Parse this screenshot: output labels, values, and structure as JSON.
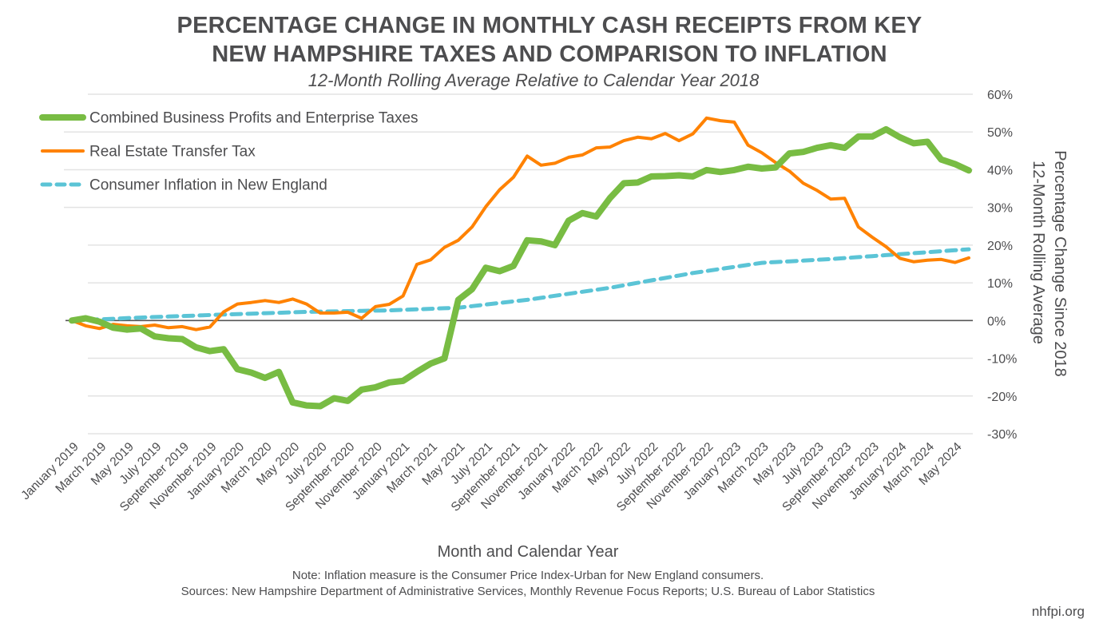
{
  "header": {
    "title_line1": "PERCENTAGE CHANGE IN MONTHLY CASH RECEIPTS FROM KEY",
    "title_line2": "NEW HAMPSHIRE TAXES AND COMPARISON TO INFLATION",
    "subtitle": "12-Month Rolling Average Relative to Calendar Year 2018"
  },
  "footer": {
    "note": "Note: Inflation measure is the Consumer Price Index-Urban for New England consumers.",
    "sources": "Sources: New Hampshire Department of Administrative Services, Monthly Revenue Focus Reports; U.S. Bureau of Labor Statistics",
    "brand": "nhfpi.org"
  },
  "chart_data": {
    "type": "line",
    "title": "PERCENTAGE CHANGE IN MONTHLY CASH RECEIPTS FROM KEY NEW HAMPSHIRE TAXES AND COMPARISON TO INFLATION",
    "subtitle": "12-Month Rolling Average Relative to Calendar Year 2018",
    "xlabel": "Month and Calendar Year",
    "ylabel_line1": "Percentage Change Since 2018",
    "ylabel_line2": "12-Month Rolling Average",
    "y_axis_side": "right",
    "ylim": [
      -30,
      60
    ],
    "yticks": [
      60,
      50,
      40,
      30,
      20,
      10,
      0,
      -10,
      -20,
      -30
    ],
    "ytick_labels": [
      "60%",
      "50%",
      "40%",
      "30%",
      "20%",
      "10%",
      "0%",
      "-10%",
      "-20%",
      "-30%"
    ],
    "grid": true,
    "legend_position": "top-left",
    "x_start": "January 2019",
    "x_end": "May 2024",
    "n_months": 66,
    "xtick_labels": [
      "January 2019",
      "March 2019",
      "May 2019",
      "July 2019",
      "September 2019",
      "November 2019",
      "January 2020",
      "March 2020",
      "May 2020",
      "July 2020",
      "September 2020",
      "November 2020",
      "January 2021",
      "March 2021",
      "May 2021",
      "July 2021",
      "September 2021",
      "November 2021",
      "January 2022",
      "March 2022",
      "May 2022",
      "July 2022",
      "September 2022",
      "November 2022",
      "January 2023",
      "March 2023",
      "May 2023",
      "July 2023",
      "September 2023",
      "November 2023",
      "January 2024",
      "March 2024",
      "May 2024"
    ],
    "series": [
      {
        "name": "Combined Business Profits and Enterprise Taxes",
        "color": "#78BC43",
        "style": "solid-thick",
        "values": [
          0,
          0.6,
          -0.3,
          -1.9,
          -2.4,
          -2.1,
          -4.2,
          -4.7,
          -4.9,
          -7.1,
          -8.1,
          -7.6,
          -12.9,
          -13.8,
          -15.2,
          -13.6,
          -21.7,
          -22.5,
          -22.7,
          -20.6,
          -21.3,
          -18.3,
          -17.7,
          -16.4,
          -16.0,
          -13.6,
          -11.4,
          -10.0,
          5.5,
          8.3,
          14.0,
          13.1,
          14.5,
          21.3,
          21.0,
          20.0,
          26.5,
          28.5,
          27.6,
          32.5,
          36.4,
          36.6,
          38.2,
          38.3,
          38.5,
          38.2,
          39.9,
          39.4,
          39.9,
          40.8,
          40.3,
          40.6,
          44.3,
          44.7,
          45.8,
          46.5,
          45.8,
          48.8,
          48.8,
          50.7,
          48.6,
          47.0,
          47.4,
          42.7,
          41.5,
          39.8
        ]
      },
      {
        "name": "Real Estate Transfer Tax",
        "color": "#FF8200",
        "style": "solid",
        "values": [
          0,
          -1.4,
          -2.1,
          -1.0,
          -1.4,
          -1.6,
          -1.2,
          -1.9,
          -1.6,
          -2.4,
          -1.7,
          2.3,
          4.4,
          4.8,
          5.3,
          4.8,
          5.7,
          4.4,
          2.0,
          2.0,
          2.2,
          0.6,
          3.7,
          4.3,
          6.5,
          14.9,
          16.1,
          19.4,
          21.3,
          24.8,
          30.2,
          34.7,
          38.0,
          43.6,
          41.2,
          41.7,
          43.3,
          43.9,
          45.8,
          46.0,
          47.7,
          48.6,
          48.2,
          49.6,
          47.7,
          49.5,
          53.7,
          53.0,
          52.6,
          46.5,
          44.5,
          41.9,
          39.6,
          36.4,
          34.5,
          32.2,
          32.4,
          24.8,
          22.1,
          19.6,
          16.5,
          15.6,
          16.0,
          16.2,
          15.4,
          16.6
        ]
      },
      {
        "name": "Consumer Inflation in New England",
        "color": "#5BC4D6",
        "style": "dashed",
        "values": [
          0,
          0.16,
          0.32,
          0.48,
          0.64,
          0.8,
          0.93,
          1.07,
          1.2,
          1.33,
          1.47,
          1.6,
          1.72,
          1.83,
          1.95,
          2.07,
          2.18,
          2.3,
          2.37,
          2.43,
          2.5,
          2.57,
          2.63,
          2.7,
          2.84,
          2.98,
          3.12,
          3.26,
          3.4,
          3.82,
          4.24,
          4.66,
          5.08,
          5.5,
          6.03,
          6.57,
          7.1,
          7.63,
          8.17,
          8.7,
          9.35,
          10.0,
          10.65,
          11.3,
          11.95,
          12.6,
          13.14,
          13.68,
          14.22,
          14.76,
          15.3,
          15.5,
          15.7,
          15.9,
          16.1,
          16.3,
          16.56,
          16.82,
          17.08,
          17.34,
          17.6,
          17.86,
          18.12,
          18.38,
          18.64,
          18.9
        ]
      }
    ]
  }
}
